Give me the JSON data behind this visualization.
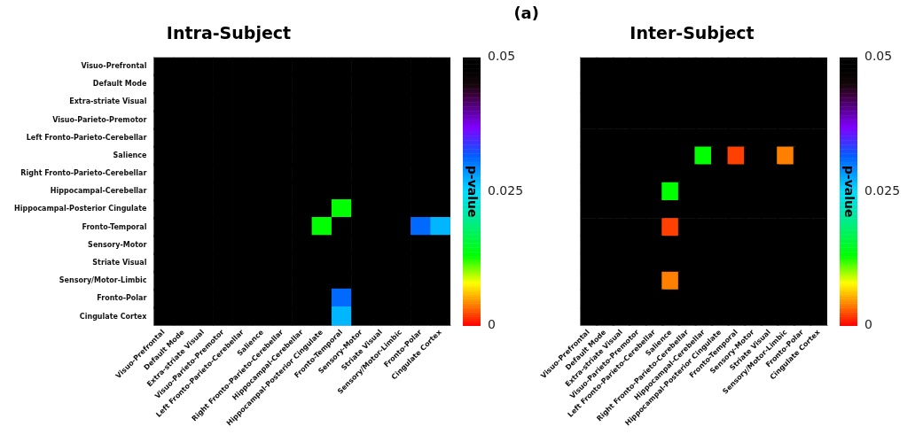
{
  "chart_data": [
    {
      "type": "heatmap",
      "title": "Intra-Subject",
      "annotations": [
        "(a)"
      ],
      "clabel": "p-value",
      "clim": [
        0,
        0.05
      ],
      "cticks": [
        0,
        0.025,
        0.05
      ],
      "categories": [
        "Visuo-Prefrontal",
        "Default Mode",
        "Extra-striate Visual",
        "Visuo-Parieto-Premotor",
        "Left Fronto-Parieto-Cerebellar",
        "Salience",
        "Right Fronto-Parieto-Cerebellar",
        "Hippocampal-Cerebellar",
        "Hippocampal-Posterior Cingulate",
        "Fronto-Temporal",
        "Sensory-Motor",
        "Striate Visual",
        "Sensory/Motor-Limbic",
        "Fronto-Polar",
        "Cingulate Cortex"
      ],
      "y_categories": [
        "Visuo-Prefrontal",
        "Default Mode",
        "Extra-striate Visual",
        "Visuo-Parieto-Premotor",
        "Left Fronto-Parieto-Cerebellar",
        "Salience",
        "Right Fronto-Parieto-Cerebellar",
        "Hippocampal-Cerebellar",
        "Hippocampal-Posterior Cingulate",
        "Fronto-Temporal",
        "Sensory-Motor",
        "Striate Visual",
        "Sensory/Motor-Limbic",
        "Fronto-Polar",
        "Cingulate Cortex"
      ],
      "cells": [
        [
          0.05,
          0.05,
          0.05,
          0.05,
          0.05,
          0.05,
          0.05,
          0.05,
          0.05,
          0.05,
          0.05,
          0.05,
          0.05,
          0.05,
          0.05
        ],
        [
          0.05,
          0.05,
          0.05,
          0.05,
          0.05,
          0.05,
          0.05,
          0.05,
          0.05,
          0.05,
          0.05,
          0.05,
          0.05,
          0.05,
          0.05
        ],
        [
          0.05,
          0.05,
          0.05,
          0.05,
          0.05,
          0.05,
          0.05,
          0.05,
          0.05,
          0.05,
          0.05,
          0.05,
          0.05,
          0.05,
          0.05
        ],
        [
          0.05,
          0.05,
          0.05,
          0.05,
          0.05,
          0.05,
          0.05,
          0.05,
          0.05,
          0.05,
          0.05,
          0.05,
          0.05,
          0.05,
          0.05
        ],
        [
          0.05,
          0.05,
          0.05,
          0.05,
          0.05,
          0.05,
          0.05,
          0.05,
          0.05,
          0.05,
          0.05,
          0.05,
          0.05,
          0.05,
          0.05
        ],
        [
          0.05,
          0.05,
          0.05,
          0.05,
          0.05,
          0.05,
          0.05,
          0.05,
          0.05,
          0.05,
          0.05,
          0.05,
          0.05,
          0.05,
          0.05
        ],
        [
          0.05,
          0.05,
          0.05,
          0.05,
          0.05,
          0.05,
          0.05,
          0.05,
          0.049,
          0.05,
          0.05,
          0.05,
          0.05,
          0.05,
          0.05
        ],
        [
          0.05,
          0.05,
          0.05,
          0.05,
          0.05,
          0.05,
          0.05,
          0.05,
          0.05,
          0.05,
          0.05,
          0.05,
          0.05,
          0.05,
          0.05
        ],
        [
          0.05,
          0.05,
          0.05,
          0.05,
          0.05,
          0.05,
          0.049,
          0.05,
          0.05,
          0.013,
          0.05,
          0.05,
          0.05,
          0.05,
          0.05
        ],
        [
          0.05,
          0.05,
          0.05,
          0.05,
          0.05,
          0.05,
          0.05,
          0.05,
          0.013,
          0.05,
          0.05,
          0.05,
          0.05,
          0.031,
          0.027
        ],
        [
          0.05,
          0.05,
          0.05,
          0.05,
          0.05,
          0.05,
          0.05,
          0.05,
          0.05,
          0.05,
          0.05,
          0.05,
          0.05,
          0.05,
          0.05
        ],
        [
          0.05,
          0.05,
          0.05,
          0.05,
          0.05,
          0.05,
          0.05,
          0.05,
          0.05,
          0.05,
          0.05,
          0.05,
          0.05,
          0.05,
          0.05
        ],
        [
          0.05,
          0.05,
          0.05,
          0.05,
          0.05,
          0.05,
          0.05,
          0.05,
          0.05,
          0.05,
          0.05,
          0.05,
          0.05,
          0.05,
          0.05
        ],
        [
          0.05,
          0.05,
          0.05,
          0.05,
          0.05,
          0.05,
          0.05,
          0.05,
          0.05,
          0.031,
          0.05,
          0.05,
          0.05,
          0.05,
          0.05
        ],
        [
          0.05,
          0.05,
          0.05,
          0.05,
          0.05,
          0.05,
          0.05,
          0.05,
          0.05,
          0.027,
          0.05,
          0.05,
          0.05,
          0.05,
          0.05
        ]
      ]
    },
    {
      "type": "heatmap",
      "title": "Inter-Subject",
      "clabel": "p-value",
      "clim": [
        0,
        0.05
      ],
      "cticks": [
        0,
        0.025,
        0.05
      ],
      "tick_labels": "x",
      "y_categories": [
        null,
        null,
        null,
        null,
        null,
        null,
        null,
        null,
        null,
        null,
        null,
        null,
        null,
        null,
        null
      ],
      "categories": [
        "Visuo-Prefrontal",
        "Default Mode",
        "Extra-striate Visual",
        "Visuo-Parieto-Premotor",
        "Left Fronto-Parieto-Cerebellar",
        "Salience",
        "Right Fronto-Parieto-Cerebellar",
        "Hippocampal-Cerebellar",
        "Hippocampal-Posterior Cingulate",
        "Fronto-Temporal",
        "Sensory-Motor",
        "Striate Visual",
        "Sensory/Motor-Limbic",
        "Fronto-Polar",
        "Cingulate Cortex"
      ],
      "cells": [
        [
          0.05,
          0.05,
          0.05,
          0.05,
          0.05,
          0.05,
          0.05,
          0.05,
          0.05,
          0.05,
          0.05,
          0.05,
          0.05,
          0.05,
          0.05
        ],
        [
          0.05,
          0.05,
          0.05,
          0.05,
          0.05,
          0.05,
          0.05,
          0.05,
          0.05,
          0.05,
          0.05,
          0.05,
          0.05,
          0.05,
          0.05
        ],
        [
          0.05,
          0.05,
          0.05,
          0.05,
          0.05,
          0.05,
          0.05,
          0.05,
          0.05,
          0.05,
          0.05,
          0.05,
          0.05,
          0.05,
          0.05
        ],
        [
          0.05,
          0.05,
          0.05,
          0.05,
          0.05,
          0.05,
          0.05,
          0.05,
          0.05,
          0.05,
          0.05,
          0.05,
          0.05,
          0.05,
          0.05
        ],
        [
          0.05,
          0.05,
          0.05,
          0.05,
          0.05,
          0.05,
          0.05,
          0.05,
          0.05,
          0.05,
          0.05,
          0.05,
          0.05,
          0.05,
          0.05
        ],
        [
          0.05,
          0.05,
          0.05,
          0.05,
          0.05,
          0.05,
          0.05,
          0.013,
          0.05,
          0.002,
          0.05,
          0.05,
          0.004,
          0.05,
          0.05
        ],
        [
          0.05,
          0.05,
          0.05,
          0.05,
          0.05,
          0.05,
          0.05,
          0.05,
          0.05,
          0.05,
          0.05,
          0.05,
          0.05,
          0.05,
          0.05
        ],
        [
          0.05,
          0.05,
          0.05,
          0.05,
          0.05,
          0.013,
          0.05,
          0.05,
          0.05,
          0.05,
          0.05,
          0.05,
          0.05,
          0.05,
          0.05
        ],
        [
          0.05,
          0.05,
          0.05,
          0.05,
          0.05,
          0.05,
          0.05,
          0.05,
          0.05,
          0.05,
          0.05,
          0.05,
          0.05,
          0.05,
          0.05
        ],
        [
          0.05,
          0.05,
          0.05,
          0.05,
          0.05,
          0.002,
          0.05,
          0.05,
          0.05,
          0.05,
          0.05,
          0.05,
          0.05,
          0.05,
          0.05
        ],
        [
          0.05,
          0.05,
          0.05,
          0.05,
          0.05,
          0.05,
          0.05,
          0.05,
          0.05,
          0.05,
          0.05,
          0.05,
          0.05,
          0.05,
          0.05
        ],
        [
          0.05,
          0.05,
          0.05,
          0.05,
          0.05,
          0.05,
          0.05,
          0.05,
          0.05,
          0.05,
          0.05,
          0.05,
          0.05,
          0.05,
          0.05
        ],
        [
          0.05,
          0.05,
          0.05,
          0.05,
          0.05,
          0.004,
          0.05,
          0.05,
          0.05,
          0.05,
          0.05,
          0.05,
          0.05,
          0.05,
          0.05
        ],
        [
          0.05,
          0.05,
          0.05,
          0.05,
          0.05,
          0.05,
          0.05,
          0.05,
          0.05,
          0.05,
          0.05,
          0.05,
          0.05,
          0.05,
          0.05
        ],
        [
          0.05,
          0.05,
          0.05,
          0.05,
          0.05,
          0.05,
          0.05,
          0.05,
          0.05,
          0.05,
          0.05,
          0.05,
          0.05,
          0.05,
          0.05
        ]
      ]
    }
  ]
}
